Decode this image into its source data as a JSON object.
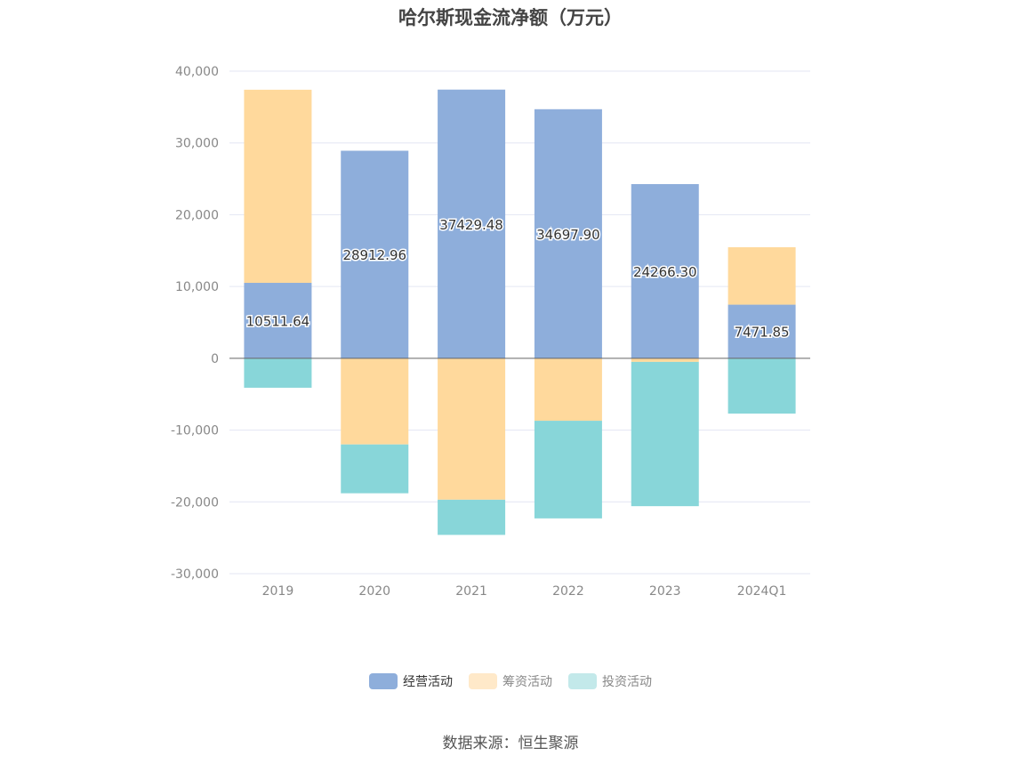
{
  "title": "哈尔斯现金流净额（万元）",
  "source": "数据来源：恒生聚源",
  "colors": {
    "operating": "#8eaedb",
    "financing": "#ffd99c",
    "investing": "#88d6d9",
    "grid": "#e3e6f3",
    "zero_line": "#666666"
  },
  "legend": [
    {
      "label": "经营活动",
      "color": "#8eaedb",
      "text_color": "#333333"
    },
    {
      "label": "筹资活动",
      "color": "#ffe9c9",
      "text_color": "#888888"
    },
    {
      "label": "投资活动",
      "color": "#c3e9ea",
      "text_color": "#888888"
    }
  ],
  "chart_data": {
    "type": "bar",
    "stacked": true,
    "title": "哈尔斯现金流净额（万元）",
    "categories": [
      "2019",
      "2020",
      "2021",
      "2022",
      "2023",
      "2024Q1"
    ],
    "ylim": [
      -30000,
      40000
    ],
    "yticks": [
      40000,
      30000,
      20000,
      10000,
      0,
      -10000,
      -20000,
      -30000
    ],
    "ytick_labels": [
      "40,000",
      "30,000",
      "20,000",
      "10,000",
      "0",
      "-10,000",
      "-20,000",
      "-30,000"
    ],
    "grid": true,
    "legend_position": "bottom",
    "series": [
      {
        "name": "经营活动",
        "values": [
          10511.64,
          28912.96,
          37429.48,
          34697.9,
          24266.3,
          7471.85
        ],
        "labels": [
          "10511.64",
          "28912.96",
          "37429.48",
          "34697.90",
          "24266.30",
          "7471.85"
        ]
      },
      {
        "name": "筹资活动",
        "values": [
          26900,
          -12000,
          -19700,
          -8700,
          -500,
          8000
        ]
      },
      {
        "name": "投资活动",
        "values": [
          -4100,
          -6800,
          -4900,
          -13600,
          -20100,
          -7700
        ]
      }
    ]
  }
}
